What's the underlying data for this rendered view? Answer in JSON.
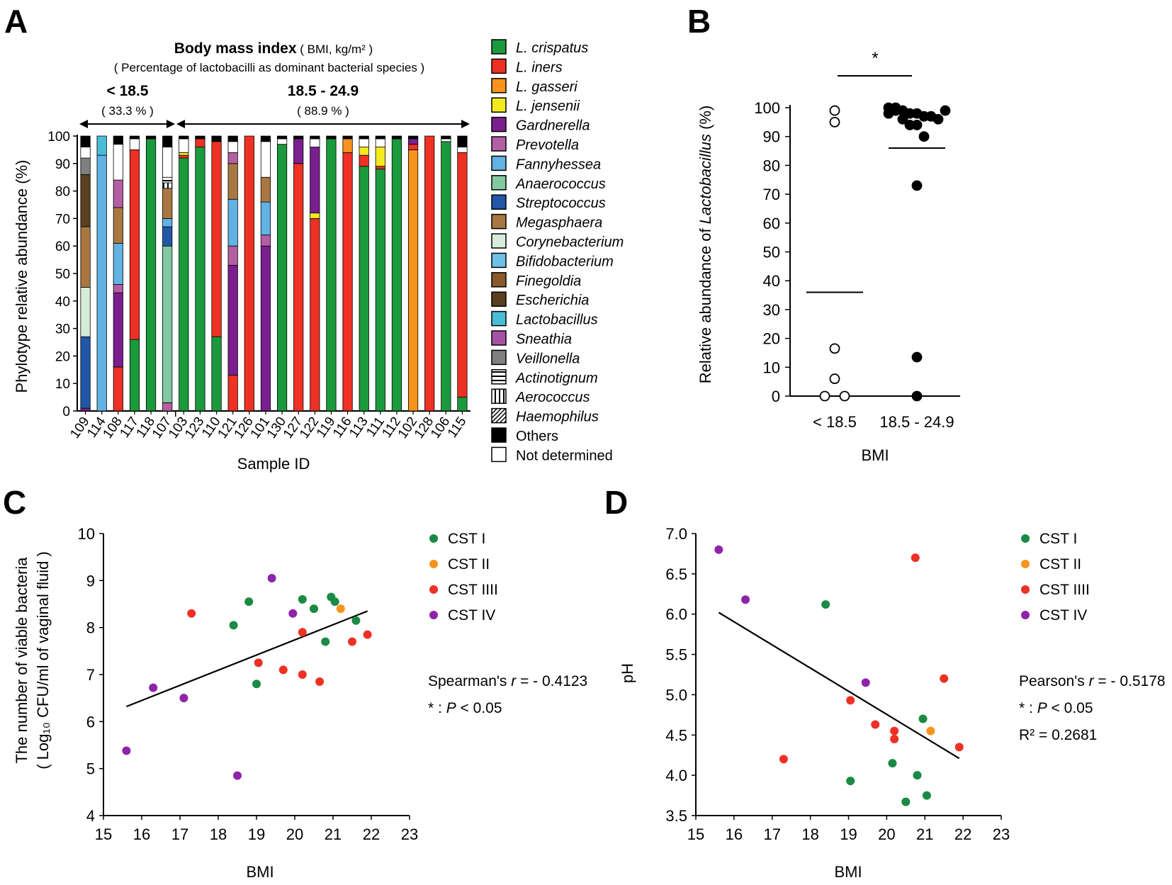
{
  "panels": {
    "A": {
      "letter": "A",
      "title_bold": "Body mass index",
      "title_rest": " ( BMI, kg/m² )",
      "subtitle": "( Percentage of lactobacilli as dominant bacterial species )",
      "group1_label": "< 18.5",
      "group1_pct": "( 33.3 % )",
      "group2_label": "18.5 - 24.9",
      "group2_pct": "( 88.9 % )"
    },
    "B": {
      "letter": "B",
      "sig": "*"
    },
    "C": {
      "letter": "C"
    },
    "D": {
      "letter": "D"
    }
  },
  "legend_species": [
    {
      "name": "L. crispatus",
      "color": "#1a9a3c",
      "pattern": "solid",
      "italic": true
    },
    {
      "name": "L. iners",
      "color": "#ee3124",
      "pattern": "solid",
      "italic": true
    },
    {
      "name": "L. gasseri",
      "color": "#f7941d",
      "pattern": "solid",
      "italic": true
    },
    {
      "name": "L. jensenii",
      "color": "#f2ea1f",
      "pattern": "solid",
      "italic": true
    },
    {
      "name": "Gardnerella",
      "color": "#7b1f8e",
      "pattern": "solid",
      "italic": true
    },
    {
      "name": "Prevotella",
      "color": "#b45fa3",
      "pattern": "solid",
      "italic": true
    },
    {
      "name": "Fannyhessea",
      "color": "#62b2e4",
      "pattern": "solid",
      "italic": true
    },
    {
      "name": "Anaerococcus",
      "color": "#82c99f",
      "pattern": "solid",
      "italic": true
    },
    {
      "name": "Streptococcus",
      "color": "#2157a6",
      "pattern": "solid",
      "italic": true
    },
    {
      "name": "Megasphaera",
      "color": "#a97842",
      "pattern": "solid",
      "italic": true
    },
    {
      "name": "Corynebacterium",
      "color": "#d5ecd8",
      "pattern": "solid",
      "italic": true
    },
    {
      "name": "Bifidobacterium",
      "color": "#6ec0e8",
      "pattern": "solid",
      "italic": true
    },
    {
      "name": "Finegoldia",
      "color": "#8a5a2b",
      "pattern": "solid",
      "italic": true
    },
    {
      "name": "Escherichia",
      "color": "#5a3f22",
      "pattern": "solid",
      "italic": true
    },
    {
      "name": "Lactobacillus",
      "color": "#4bbcd6",
      "pattern": "solid",
      "italic": true
    },
    {
      "name": "Sneathia",
      "color": "#a552a6",
      "pattern": "solid",
      "italic": true
    },
    {
      "name": "Veillonella",
      "color": "#808080",
      "pattern": "solid",
      "italic": true
    },
    {
      "name": "Actinotignum",
      "color": "#ffffff",
      "pattern": "hline",
      "italic": true
    },
    {
      "name": "Aerococcus",
      "color": "#ffffff",
      "pattern": "vline",
      "italic": true
    },
    {
      "name": "Haemophilus",
      "color": "#ffffff",
      "pattern": "diag",
      "italic": true
    },
    {
      "name": "Others",
      "color": "#000000",
      "pattern": "solid",
      "italic": false
    },
    {
      "name": "Not determined",
      "color": "#ffffff",
      "pattern": "solid",
      "italic": false
    }
  ],
  "cst_legend": [
    {
      "name": "CST I",
      "color": "#1a8a44"
    },
    {
      "name": "CST II",
      "color": "#f7941d"
    },
    {
      "name": "CST IIII",
      "color": "#ee3124"
    },
    {
      "name": "CST IV",
      "color": "#8e24aa"
    }
  ],
  "stats": {
    "C": {
      "method": "Spearman's ",
      "r_symbol": "r",
      "r_value": " = - 0.4123",
      "p_prefix": "* : ",
      "p_symbol": "P",
      "p_value": " < 0.05"
    },
    "D": {
      "method": "Pearson's ",
      "r_symbol": "r",
      "r_value": " = - 0.5178",
      "p_prefix": "* : ",
      "p_symbol": "P",
      "p_value": " < 0.05",
      "r2": "R² = 0.2681"
    }
  },
  "chart_data": [
    {
      "panel": "A",
      "type": "bar",
      "stacked": true,
      "xlabel": "Sample ID",
      "ylabel": "Phylotype relative abundance (%)",
      "ylim": [
        0,
        100
      ],
      "yticks": [
        0,
        10,
        20,
        30,
        40,
        50,
        60,
        70,
        80,
        90,
        100
      ],
      "categories": [
        "109",
        "114",
        "108",
        "117",
        "118",
        "107",
        "103",
        "123",
        "110",
        "121",
        "126",
        "101",
        "130",
        "127",
        "122",
        "119",
        "116",
        "113",
        "111",
        "112",
        "102",
        "128",
        "106",
        "115"
      ],
      "groups": [
        {
          "label": "< 18.5",
          "count": 6
        },
        {
          "label": "18.5 - 24.9",
          "count": 18
        }
      ],
      "stacks": [
        [
          [
            "Gardnerella",
            1
          ],
          [
            "Streptococcus",
            26
          ],
          [
            "Corynebacterium",
            18
          ],
          [
            "Megasphaera",
            22
          ],
          [
            "Escherichia",
            19
          ],
          [
            "Veillonella",
            6
          ],
          [
            "Not determined",
            4
          ],
          [
            "Others",
            4
          ]
        ],
        [
          [
            "Fannyhessea",
            93
          ],
          [
            "Lactobacillus",
            7
          ]
        ],
        [
          [
            "L. iners",
            16
          ],
          [
            "Gardnerella",
            27
          ],
          [
            "Prevotella",
            3
          ],
          [
            "Fannyhessea",
            15
          ],
          [
            "Megasphaera",
            13
          ],
          [
            "Prevotella",
            10
          ],
          [
            "Not determined",
            13
          ],
          [
            "Others",
            3
          ]
        ],
        [
          [
            "L. crispatus",
            26
          ],
          [
            "L. iners",
            69
          ],
          [
            "Not determined",
            4
          ],
          [
            "Others",
            1
          ]
        ],
        [
          [
            "L. crispatus",
            99
          ],
          [
            "Others",
            1
          ]
        ],
        [
          [
            "Prevotella",
            3
          ],
          [
            "Anaerococcus",
            57
          ],
          [
            "Streptococcus",
            7
          ],
          [
            "Fannyhessea",
            3
          ],
          [
            "Megasphaera",
            11
          ],
          [
            "Aerococcus",
            2
          ],
          [
            "Actinotignum",
            2
          ],
          [
            "Not determined",
            11
          ],
          [
            "Others",
            4
          ]
        ],
        [
          [
            "L. crispatus",
            92
          ],
          [
            "L. iners",
            1
          ],
          [
            "L. jensenii",
            1
          ],
          [
            "Not determined",
            5
          ],
          [
            "Others",
            1
          ]
        ],
        [
          [
            "L. crispatus",
            96
          ],
          [
            "L. iners",
            3
          ],
          [
            "Others",
            1
          ]
        ],
        [
          [
            "L. crispatus",
            27
          ],
          [
            "L. iners",
            71
          ],
          [
            "Others",
            2
          ]
        ],
        [
          [
            "L. iners",
            13
          ],
          [
            "Gardnerella",
            40
          ],
          [
            "Prevotella",
            7
          ],
          [
            "Fannyhessea",
            17
          ],
          [
            "Megasphaera",
            13
          ],
          [
            "Prevotella",
            4
          ],
          [
            "Not determined",
            4
          ],
          [
            "Others",
            2
          ]
        ],
        [
          [
            "L. iners",
            100
          ]
        ],
        [
          [
            "Gardnerella",
            60
          ],
          [
            "Prevotella",
            4
          ],
          [
            "Fannyhessea",
            12
          ],
          [
            "Megasphaera",
            9
          ],
          [
            "Not determined",
            13
          ],
          [
            "Others",
            2
          ]
        ],
        [
          [
            "L. crispatus",
            97
          ],
          [
            "Not determined",
            2
          ],
          [
            "Others",
            1
          ]
        ],
        [
          [
            "L. iners",
            90
          ],
          [
            "Gardnerella",
            9
          ],
          [
            "Others",
            1
          ]
        ],
        [
          [
            "L. iners",
            70
          ],
          [
            "L. jensenii",
            2
          ],
          [
            "Gardnerella",
            24
          ],
          [
            "Not determined",
            3
          ],
          [
            "Others",
            1
          ]
        ],
        [
          [
            "L. crispatus",
            99
          ],
          [
            "Others",
            1
          ]
        ],
        [
          [
            "L. iners",
            94
          ],
          [
            "L. gasseri",
            5
          ],
          [
            "Others",
            1
          ]
        ],
        [
          [
            "L. crispatus",
            89
          ],
          [
            "L. iners",
            4
          ],
          [
            "L. jensenii",
            3
          ],
          [
            "Not determined",
            3
          ],
          [
            "Others",
            1
          ]
        ],
        [
          [
            "L. crispatus",
            88
          ],
          [
            "L. iners",
            1
          ],
          [
            "L. jensenii",
            7
          ],
          [
            "Not determined",
            3
          ],
          [
            "Others",
            1
          ]
        ],
        [
          [
            "L. crispatus",
            99
          ],
          [
            "Others",
            1
          ]
        ],
        [
          [
            "L. gasseri",
            95
          ],
          [
            "L. iners",
            2
          ],
          [
            "Gardnerella",
            2
          ],
          [
            "Others",
            1
          ]
        ],
        [
          [
            "L. iners",
            100
          ]
        ],
        [
          [
            "L. crispatus",
            98
          ],
          [
            "Not determined",
            1
          ],
          [
            "Others",
            1
          ]
        ],
        [
          [
            "L. crispatus",
            5
          ],
          [
            "L. iners",
            89
          ],
          [
            "Not determined",
            2
          ],
          [
            "Others",
            4
          ]
        ]
      ]
    },
    {
      "panel": "B",
      "type": "scatter",
      "xlabel": "BMI",
      "ylabel_prefix": "Relative abundance of ",
      "ylabel_italic": "Lactobacillus",
      "ylabel_suffix": " (%)",
      "ylim": [
        0,
        100
      ],
      "yticks": [
        0,
        10,
        20,
        30,
        40,
        50,
        60,
        70,
        80,
        90,
        100
      ],
      "categories": [
        "< 18.5",
        "18.5 - 24.9"
      ],
      "series": [
        {
          "name": "< 18.5",
          "filled": false,
          "values": [
            99,
            95,
            16.5,
            6,
            0,
            0
          ],
          "mean": 36
        },
        {
          "name": "18.5 - 24.9",
          "filled": true,
          "values": [
            100,
            99,
            99,
            98,
            98,
            97,
            97,
            96,
            99,
            98,
            100,
            96,
            94,
            94,
            90,
            73,
            13.5,
            0
          ],
          "mean": 86
        }
      ]
    },
    {
      "panel": "C",
      "type": "scatter",
      "xlabel": "BMI",
      "ylabel_line1": "The number of viable bacteria",
      "ylabel_line2": "( Log₁₀ CFU/ml of vaginal fluid )",
      "xlim": [
        15,
        23
      ],
      "ylim": [
        4,
        10
      ],
      "xticks": [
        15,
        16,
        17,
        18,
        19,
        20,
        21,
        22,
        23
      ],
      "yticks": [
        4,
        5,
        6,
        7,
        8,
        9,
        10
      ],
      "points": [
        {
          "x": 18.4,
          "y": 8.05,
          "cst": "CST I"
        },
        {
          "x": 18.8,
          "y": 8.55,
          "cst": "CST I"
        },
        {
          "x": 19.0,
          "y": 6.8,
          "cst": "CST I"
        },
        {
          "x": 20.2,
          "y": 8.6,
          "cst": "CST I"
        },
        {
          "x": 20.5,
          "y": 8.4,
          "cst": "CST I"
        },
        {
          "x": 20.8,
          "y": 7.7,
          "cst": "CST I"
        },
        {
          "x": 20.95,
          "y": 8.65,
          "cst": "CST I"
        },
        {
          "x": 21.05,
          "y": 8.55,
          "cst": "CST I"
        },
        {
          "x": 21.6,
          "y": 8.15,
          "cst": "CST I"
        },
        {
          "x": 21.2,
          "y": 8.4,
          "cst": "CST II"
        },
        {
          "x": 17.3,
          "y": 8.3,
          "cst": "CST IIII"
        },
        {
          "x": 19.05,
          "y": 7.25,
          "cst": "CST IIII"
        },
        {
          "x": 19.7,
          "y": 7.1,
          "cst": "CST IIII"
        },
        {
          "x": 20.2,
          "y": 7.0,
          "cst": "CST IIII"
        },
        {
          "x": 20.2,
          "y": 7.9,
          "cst": "CST IIII"
        },
        {
          "x": 20.65,
          "y": 6.85,
          "cst": "CST IIII"
        },
        {
          "x": 21.5,
          "y": 7.7,
          "cst": "CST IIII"
        },
        {
          "x": 21.9,
          "y": 7.85,
          "cst": "CST IIII"
        },
        {
          "x": 15.6,
          "y": 5.38,
          "cst": "CST IV"
        },
        {
          "x": 16.3,
          "y": 6.72,
          "cst": "CST IV"
        },
        {
          "x": 17.1,
          "y": 6.5,
          "cst": "CST IV"
        },
        {
          "x": 18.5,
          "y": 4.85,
          "cst": "CST IV"
        },
        {
          "x": 19.4,
          "y": 9.05,
          "cst": "CST IV"
        },
        {
          "x": 19.95,
          "y": 8.3,
          "cst": "CST IV"
        }
      ],
      "trendline": {
        "x": [
          15.6,
          21.9
        ],
        "y": [
          6.32,
          8.35
        ]
      }
    },
    {
      "panel": "D",
      "type": "scatter",
      "xlabel": "BMI",
      "ylabel": "pH",
      "xlim": [
        15,
        23
      ],
      "ylim": [
        3.5,
        7.0
      ],
      "xticks": [
        15,
        16,
        17,
        18,
        19,
        20,
        21,
        22,
        23
      ],
      "yticks": [
        "3.5",
        "4.0",
        "4.5",
        "5.0",
        "5.5",
        "6.0",
        "6.5",
        "7.0"
      ],
      "points": [
        {
          "x": 18.4,
          "y": 6.12,
          "cst": "CST I"
        },
        {
          "x": 19.05,
          "y": 3.93,
          "cst": "CST I"
        },
        {
          "x": 20.15,
          "y": 4.15,
          "cst": "CST I"
        },
        {
          "x": 20.5,
          "y": 3.67,
          "cst": "CST I"
        },
        {
          "x": 20.8,
          "y": 4.0,
          "cst": "CST I"
        },
        {
          "x": 20.95,
          "y": 4.7,
          "cst": "CST I"
        },
        {
          "x": 21.05,
          "y": 3.75,
          "cst": "CST I"
        },
        {
          "x": 21.15,
          "y": 4.55,
          "cst": "CST II"
        },
        {
          "x": 17.3,
          "y": 4.2,
          "cst": "CST IIII"
        },
        {
          "x": 19.05,
          "y": 4.93,
          "cst": "CST IIII"
        },
        {
          "x": 19.7,
          "y": 4.63,
          "cst": "CST IIII"
        },
        {
          "x": 20.2,
          "y": 4.55,
          "cst": "CST IIII"
        },
        {
          "x": 20.2,
          "y": 4.45,
          "cst": "CST IIII"
        },
        {
          "x": 20.75,
          "y": 6.7,
          "cst": "CST IIII"
        },
        {
          "x": 21.5,
          "y": 5.2,
          "cst": "CST IIII"
        },
        {
          "x": 21.9,
          "y": 4.35,
          "cst": "CST IIII"
        },
        {
          "x": 15.6,
          "y": 6.8,
          "cst": "CST IV"
        },
        {
          "x": 16.3,
          "y": 6.18,
          "cst": "CST IV"
        },
        {
          "x": 19.45,
          "y": 5.15,
          "cst": "CST IV"
        }
      ],
      "trendline": {
        "x": [
          15.6,
          21.9
        ],
        "y": [
          6.02,
          4.21
        ]
      }
    }
  ]
}
